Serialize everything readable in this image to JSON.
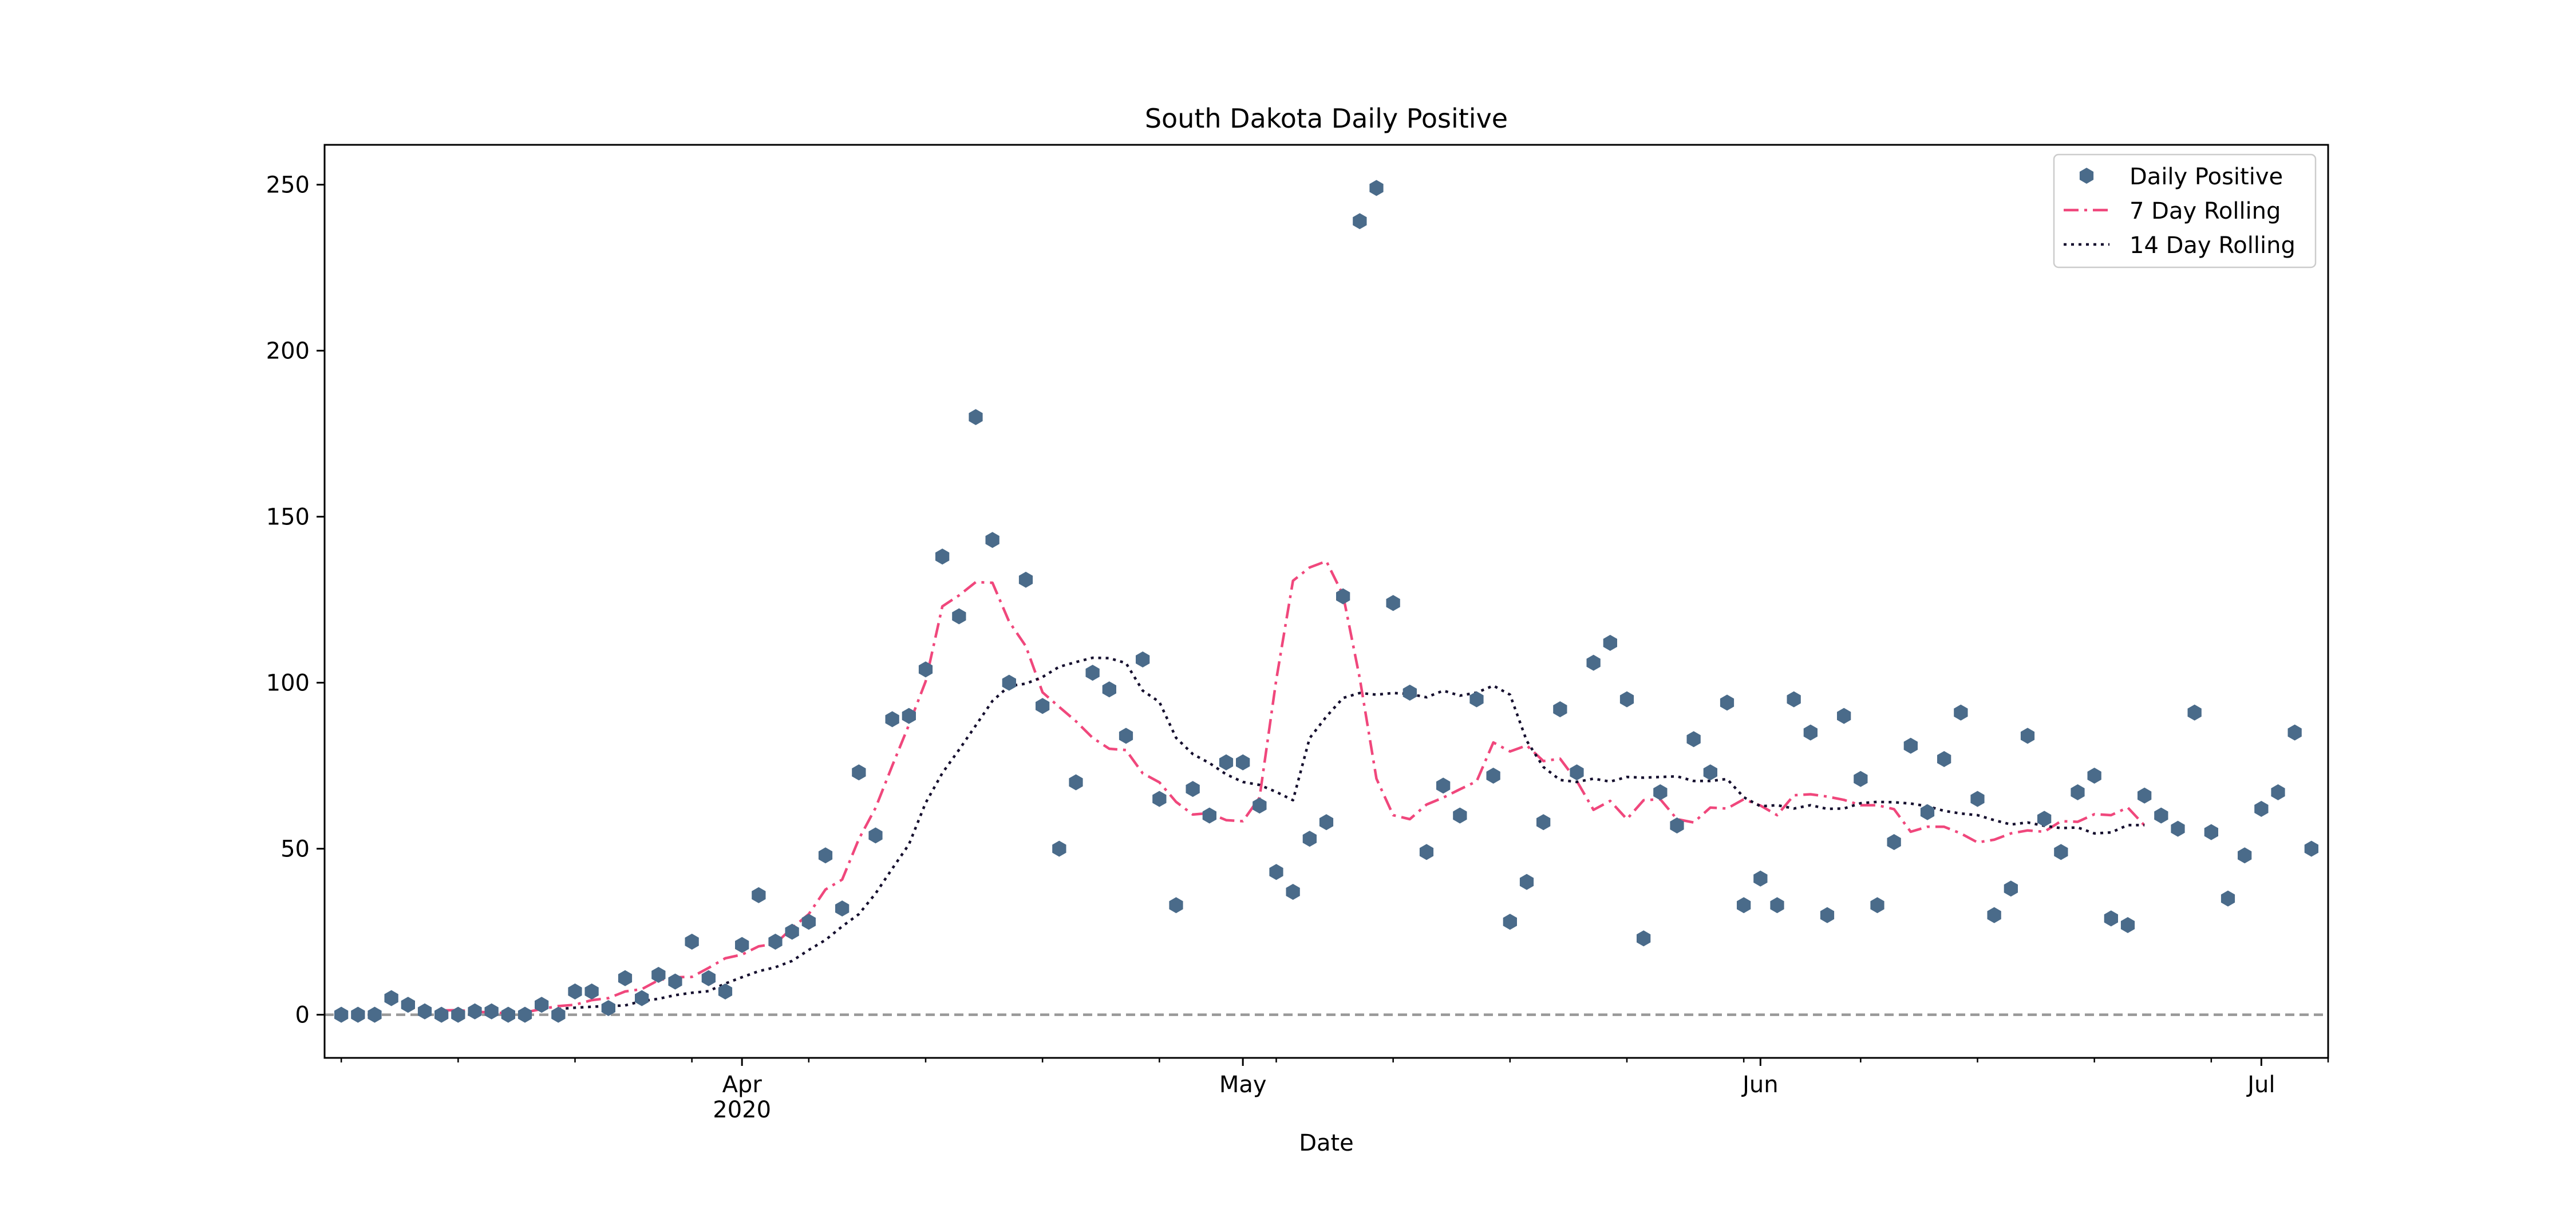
{
  "chart_data": {
    "type": "scatter",
    "title": "South Dakota Daily Positive",
    "xlabel": "Date",
    "ylabel": "",
    "xlim": [
      "2020-03-07",
      "2020-07-05"
    ],
    "ylim": [
      -13,
      262
    ],
    "y_ticks": [
      0,
      50,
      100,
      150,
      200,
      250
    ],
    "x_ticks": [
      {
        "date": "2020-04-01",
        "label": "Apr",
        "sublabel": "2020"
      },
      {
        "date": "2020-05-01",
        "label": "May",
        "sublabel": ""
      },
      {
        "date": "2020-06-01",
        "label": "Jun",
        "sublabel": ""
      },
      {
        "date": "2020-07-01",
        "label": "Jul",
        "sublabel": ""
      }
    ],
    "grid": false,
    "legend_position": "top-right",
    "reference_line": {
      "y": 0,
      "style": "dashed",
      "color": "#999999"
    },
    "series": [
      {
        "name": "Daily Positive",
        "kind": "scatter",
        "color": "#4a6b8a",
        "x_start": "2020-03-08",
        "values": [
          0,
          0,
          0,
          5,
          3,
          1,
          0,
          0,
          1,
          1,
          0,
          0,
          3,
          0,
          7,
          7,
          2,
          11,
          5,
          12,
          10,
          22,
          11,
          7,
          21,
          36,
          22,
          25,
          28,
          48,
          32,
          73,
          54,
          89,
          90,
          104,
          138,
          120,
          180,
          143,
          100,
          131,
          93,
          50,
          70,
          103,
          98,
          84,
          107,
          65,
          33,
          68,
          60,
          76,
          76,
          63,
          43,
          37,
          53,
          58,
          126,
          239,
          249,
          124,
          97,
          49,
          69,
          60,
          95,
          72,
          28,
          40,
          58,
          92,
          73,
          106,
          112,
          95,
          23,
          67,
          57,
          83,
          73,
          94,
          33,
          41,
          33,
          95,
          85,
          30,
          90,
          71,
          33,
          52,
          81,
          61,
          77,
          91,
          65,
          30,
          38,
          84,
          59,
          49,
          67,
          72,
          29,
          27,
          66,
          60,
          56,
          91,
          55,
          35,
          48,
          62,
          67,
          85,
          50
        ]
      },
      {
        "name": "7 Day Rolling",
        "kind": "line",
        "style": "dashdot",
        "color": "#f0477c",
        "x_start": "2020-03-14",
        "values": [
          1.3,
          1.4,
          0.9,
          0.7,
          0.4,
          0.7,
          1.7,
          2.6,
          3.0,
          4.4,
          5.0,
          7.0,
          7.7,
          10.4,
          11.3,
          11.4,
          14.1,
          17.0,
          18.1,
          20.6,
          21.4,
          26.1,
          30.3,
          37.7,
          40.7,
          52.9,
          62.3,
          75.0,
          87.3,
          100.4,
          123.0,
          126.3,
          130.3,
          130.1,
          118.4,
          111.0,
          97.1,
          92.7,
          88.4,
          83.4,
          80.1,
          79.7,
          72.7,
          70.0,
          64.1,
          60.3,
          60.7,
          58.6,
          58.3,
          65.4,
          100.9,
          130.7,
          134.7,
          136.6,
          126.4,
          101.4,
          71.1,
          60.1,
          58.9,
          63.3,
          65.4,
          67.9,
          70.3,
          82.0,
          79.3,
          81.1,
          76.4,
          77.1,
          70.4,
          61.7,
          64.4,
          58.9,
          64.6,
          64.9,
          58.9,
          57.9,
          62.4,
          62.1,
          64.9,
          63.0,
          60.1,
          66.1,
          66.4,
          65.7,
          64.7,
          63.1,
          63.1,
          61.9,
          55.1,
          56.6,
          56.6,
          54.6,
          51.9,
          52.7,
          54.6,
          55.5,
          55.1,
          58.3,
          58.1,
          60.4,
          60.1,
          62.4,
          57.0
        ]
      },
      {
        "name": "14 Day Rolling",
        "kind": "line",
        "style": "dotted",
        "color": "#150f2e",
        "x_start": "2020-03-21",
        "values": [
          1.7,
          2.1,
          2.4,
          2.6,
          2.8,
          4.1,
          4.8,
          5.9,
          6.6,
          7.1,
          9.4,
          11.3,
          13.1,
          14.3,
          16.2,
          19.5,
          22.5,
          26.6,
          30.3,
          36.5,
          44.0,
          51.3,
          63.8,
          72.8,
          79.8,
          87.1,
          94.5,
          99.0,
          99.7,
          101.7,
          104.8,
          106.2,
          107.5,
          107.4,
          105.9,
          97.6,
          94.2,
          83.4,
          78.5,
          75.8,
          72.4,
          70.1,
          69.2,
          67.1,
          64.6,
          83.3,
          89.8,
          95.4,
          96.9,
          96.4,
          96.9,
          96.6,
          95.6,
          97.6,
          96.1,
          97.0,
          99.1,
          96.4,
          82.5,
          74.6,
          70.7,
          70.1,
          71.1,
          70.2,
          71.6,
          71.4,
          71.6,
          71.8,
          70.4,
          70.4,
          71.0,
          65.5,
          62.8,
          63.1,
          62.1,
          63.1,
          62.0,
          62.1,
          63.7,
          64.1,
          64.0,
          63.6,
          62.8,
          61.4,
          60.6,
          60.1,
          58.6,
          57.3,
          57.9,
          56.9,
          56.2,
          56.4,
          54.6,
          54.9,
          57.1,
          57.1
        ]
      }
    ]
  }
}
